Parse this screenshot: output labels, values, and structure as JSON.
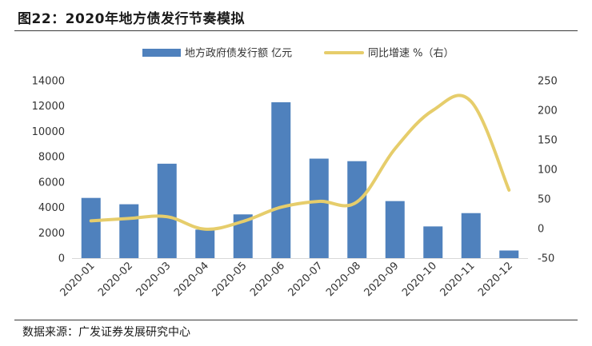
{
  "figure": {
    "title": "图22：2020年地方债发行节奏模拟",
    "source": "数据来源：广发证券发展研究中心"
  },
  "chart_data": {
    "type": "bar+line",
    "categories": [
      "2020-01",
      "2020-02",
      "2020-03",
      "2020-04",
      "2020-05",
      "2020-06",
      "2020-07",
      "2020-08",
      "2020-09",
      "2020-10",
      "2020-11",
      "2020-12"
    ],
    "series": [
      {
        "name": "地方政府债发行额 亿元",
        "type": "bar",
        "axis": "left",
        "color": "#4f81bd",
        "values": [
          4750,
          4250,
          7450,
          2250,
          3450,
          12300,
          7850,
          7650,
          4500,
          2500,
          3550,
          600
        ]
      },
      {
        "name": "同比增速 %（右）",
        "type": "line",
        "axis": "right",
        "color": "#e6cd6b",
        "values": [
          13,
          17,
          20,
          -1,
          12,
          36,
          46,
          45,
          135,
          200,
          215,
          65
        ]
      }
    ],
    "left_axis": {
      "min": 0,
      "max": 14000,
      "step": 2000,
      "ticks": [
        "0",
        "2000",
        "4000",
        "6000",
        "8000",
        "10000",
        "12000",
        "14000"
      ]
    },
    "right_axis": {
      "min": -50,
      "max": 250,
      "step": 50,
      "ticks": [
        "-50",
        "0",
        "50",
        "100",
        "150",
        "200",
        "250"
      ]
    },
    "legend_position": "top-center",
    "grid": false
  }
}
